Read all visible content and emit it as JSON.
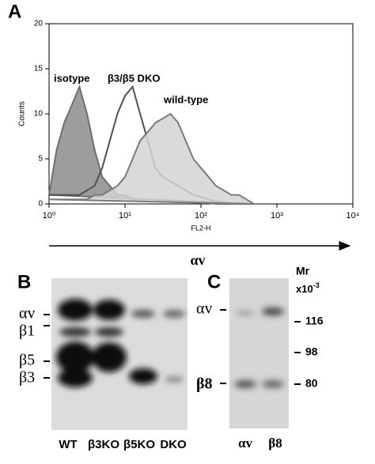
{
  "chart_data": {
    "type": "line",
    "panel_label": "A",
    "ylabel": "Counts",
    "xlabel": "FL2-H",
    "quantity_label": "αv",
    "log_x": true,
    "step": true,
    "x": [
      1,
      1.26,
      1.58,
      2,
      2.51,
      3.16,
      3.98,
      5.01,
      6.31,
      7.94,
      10,
      12.6,
      15.8,
      20,
      25.1,
      31.6,
      39.8,
      50.1,
      63.1,
      79.4,
      100,
      126,
      158,
      200,
      251,
      316,
      398,
      501
    ],
    "series": [
      {
        "name": "isotype",
        "color": "#6f6f6f",
        "fill": "#8c8c8c",
        "values": [
          1,
          6,
          9,
          11,
          13,
          10,
          6,
          3,
          2,
          1,
          1,
          0.5,
          0.5,
          0.5,
          0.5,
          0.3,
          0.3,
          0.2,
          0.2,
          0.2,
          0.1,
          0.1,
          0,
          0,
          0,
          0,
          0,
          0
        ]
      },
      {
        "name": "β3/β5 DKO",
        "color": "#505050",
        "fill": "none",
        "values": [
          1,
          1,
          1,
          1,
          1,
          1.5,
          2,
          4,
          7,
          10,
          12,
          13,
          10,
          7,
          4,
          3,
          2.5,
          2,
          1.5,
          1,
          0.8,
          0.5,
          0.3,
          0.2,
          0.1,
          0,
          0,
          0
        ]
      },
      {
        "name": "wild-type",
        "color": "#7a7a7a",
        "fill": "#d4d4d4",
        "values": [
          0.5,
          0.5,
          0.5,
          0.5,
          0.5,
          0.5,
          1,
          1,
          1.5,
          2,
          3,
          5,
          7,
          8,
          9,
          9.5,
          10,
          9,
          7,
          5,
          4,
          3,
          2,
          1.5,
          1,
          1,
          0.5,
          0
        ]
      }
    ],
    "xlim": [
      1,
      10000
    ],
    "xticks": [
      {
        "value": 1,
        "label": "10⁰"
      },
      {
        "value": 10,
        "label": "10¹"
      },
      {
        "value": 100,
        "label": "10²"
      },
      {
        "value": 1000,
        "label": "10³"
      },
      {
        "value": 10000,
        "label": "10⁴"
      }
    ],
    "ylim": [
      0,
      20
    ],
    "yticks": [
      0,
      5,
      10,
      15,
      20
    ]
  },
  "blot_b": {
    "label": "B",
    "bands": [
      "αv",
      "β1",
      "β5",
      "β3"
    ],
    "lanes": [
      "WT",
      "β3KO",
      "β5KO",
      "DKO"
    ]
  },
  "blot_c": {
    "label": "C",
    "bands": [
      "αv",
      "β8"
    ],
    "lanes": [
      "αv",
      "β8"
    ],
    "mr_title": "Mr",
    "mr_unit": "x10",
    "mr_exp": "-3",
    "markers": [
      116,
      98,
      80
    ]
  }
}
